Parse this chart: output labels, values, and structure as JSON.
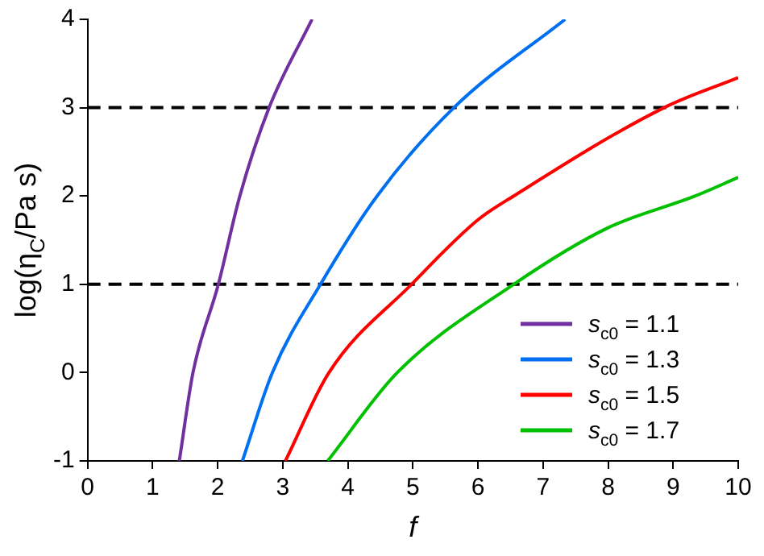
{
  "chart_data": {
    "type": "line",
    "xlabel": "f",
    "ylabel": "log(η$_{C}$/Pa s)",
    "xlim": [
      0,
      10
    ],
    "xticks": [
      0,
      1,
      2,
      3,
      4,
      5,
      6,
      7,
      8,
      9,
      10
    ],
    "ylim": [
      -1,
      4
    ],
    "yticks": [
      -1,
      0,
      1,
      2,
      3,
      4
    ],
    "grid": false,
    "legend": "bottom right",
    "marker": "none",
    "line_style": "solid",
    "ref_lines": [
      {
        "axis": "y",
        "value": 1,
        "color": "#000000",
        "line_style": "dashed"
      },
      {
        "axis": "y",
        "value": 3,
        "color": "#000000",
        "line_style": "dashed"
      }
    ],
    "series": [
      {
        "name": "s$_{c0}$ = 1.1",
        "color": "#7030a0",
        "x": [
          1.41,
          1.62,
          2.01,
          2.34,
          2.79,
          3.45
        ],
        "values": [
          -1,
          0,
          1,
          2,
          3,
          4
        ]
      },
      {
        "name": "s$_{c0}$ = 1.3",
        "color": "#0070f0",
        "x": [
          2.38,
          2.84,
          3.58,
          4.45,
          5.63,
          7.34
        ],
        "values": [
          -1,
          0,
          1,
          2,
          3,
          4
        ]
      },
      {
        "name": "s$_{c0}$ = 1.5",
        "color": "#ff0000",
        "x": [
          3.04,
          3.71,
          4.98,
          6.0,
          6.55,
          8.86,
          10
        ],
        "values": [
          -1,
          0,
          1,
          1.73,
          2,
          3,
          3.34
        ]
      },
      {
        "name": "s$_{c0}$ = 1.7",
        "color": "#00c000",
        "x": [
          3.69,
          4.76,
          6.55,
          8,
          9.34,
          10
        ],
        "values": [
          -1,
          0,
          1,
          1.64,
          2,
          2.21
        ]
      }
    ]
  }
}
